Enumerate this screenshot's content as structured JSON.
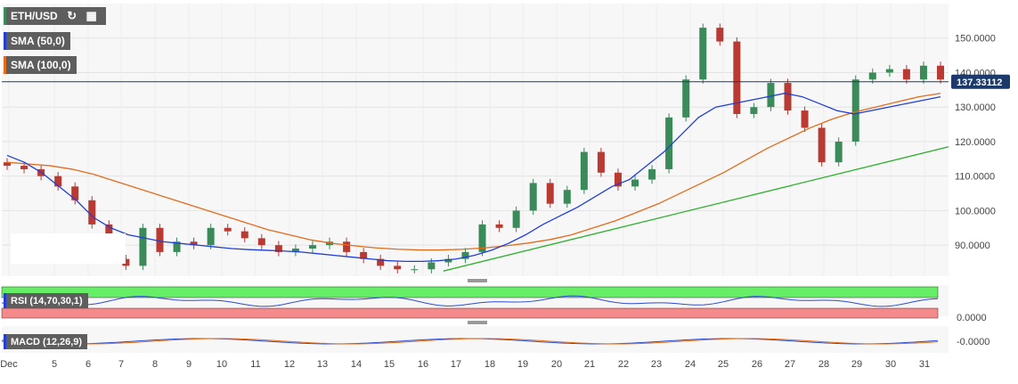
{
  "chart_data": {
    "type": "candlestick",
    "symbol": "ETH/USD",
    "last_price_label": "137.33112",
    "ylim": [
      81,
      160
    ],
    "y_ticks": [
      "150.0000",
      "140.0000",
      "130.0000",
      "120.0000",
      "110.0000",
      "100.0000",
      "90.0000"
    ],
    "x_ticks": [
      "Dec",
      "5",
      "6",
      "7",
      "8",
      "9",
      "10",
      "11",
      "12",
      "13",
      "14",
      "15",
      "16",
      "17",
      "18",
      "19",
      "20",
      "21",
      "22",
      "23",
      "24",
      "25",
      "26",
      "27",
      "28",
      "29",
      "30",
      "31"
    ],
    "closes": [
      113,
      112,
      110,
      107,
      103,
      96,
      86,
      84,
      95,
      88,
      91,
      90,
      95,
      94,
      92,
      90,
      88,
      89,
      90,
      91,
      88,
      86,
      84,
      83,
      83,
      85,
      86,
      88,
      96,
      95,
      100,
      108,
      102,
      106,
      117,
      111,
      107,
      109,
      112,
      127,
      138,
      153,
      149,
      128,
      130,
      137,
      129,
      124,
      114,
      120,
      138,
      140,
      141,
      138,
      142,
      138
    ],
    "sma50": [
      116,
      114,
      111,
      107,
      103,
      98,
      95,
      93,
      92,
      91,
      90.5,
      90,
      89.5,
      89,
      88.7,
      88.5,
      88.3,
      88,
      87.5,
      87,
      86.5,
      86,
      85.5,
      85.3,
      85.3,
      85.5,
      86,
      87,
      88.5,
      90.5,
      93,
      96,
      98.5,
      101,
      104,
      107,
      109,
      113,
      117,
      122,
      127,
      130,
      131,
      132,
      133,
      134,
      133,
      131,
      129,
      128,
      129,
      130,
      131,
      132,
      133
    ],
    "sma100": [
      114,
      113.5,
      113,
      112,
      110.5,
      108.5,
      106.5,
      104.5,
      102.5,
      100.5,
      98.5,
      96.5,
      94.5,
      93,
      91.5,
      90.5,
      89.8,
      89.2,
      88.8,
      88.6,
      88.6,
      88.8,
      89.2,
      89.8,
      90.6,
      91.6,
      93,
      95,
      97,
      99.5,
      102,
      105,
      108,
      111,
      114.5,
      118,
      121,
      124,
      126.5,
      128.5,
      130,
      131.5,
      133,
      134
    ],
    "trendline": {
      "x0": 15.6,
      "y0": 82.5,
      "x1": 31.8,
      "y1": 118.5
    },
    "horizontal_line": 137.33,
    "legend": [
      {
        "label": "SMA (50,0)",
        "color": "#1f3fd8"
      },
      {
        "label": "SMA (100,0)",
        "color": "#e46b1a"
      }
    ],
    "indicators": {
      "rsi": {
        "label": "RSI (14,70,30,1)",
        "axis_label": "0.0000"
      },
      "macd": {
        "label": "MACD (12,26,9)",
        "axis_label": "-0.0000"
      }
    },
    "colors": {
      "up": "#3b8a5a",
      "down": "#b83a33",
      "sma50": "#1f3fd8",
      "sma100": "#e46b1a",
      "trend": "#2cb02c",
      "price_line": "#1b3a6b"
    }
  }
}
